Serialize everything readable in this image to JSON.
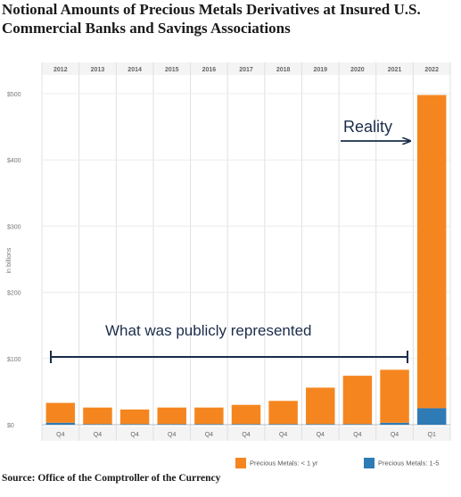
{
  "title": "Notional Amounts of Precious Metals Derivatives at Insured U.S. Commercial Banks and Savings Associations",
  "source": "Source: Office of the Comptroller of the Currency",
  "colors": {
    "orange": "#f5861f",
    "blue": "#2f7bb5",
    "grid": "#e6e6e6",
    "annotation": "#1b2d4a"
  },
  "chart_data": {
    "type": "bar",
    "stacked": true,
    "categories": [
      "2012",
      "2013",
      "2014",
      "2015",
      "2016",
      "2017",
      "2018",
      "2019",
      "2020",
      "2021",
      "2022"
    ],
    "quarters": [
      "Q4",
      "Q4",
      "Q4",
      "Q4",
      "Q4",
      "Q4",
      "Q4",
      "Q4",
      "Q4",
      "Q4",
      "Q1"
    ],
    "series": [
      {
        "name": "Precious Metals: < 1 yr",
        "color": "#f5861f",
        "values": [
          30,
          25,
          22,
          25,
          25,
          29,
          35,
          55,
          73,
          80,
          473
        ]
      },
      {
        "name": "Precious Metals: 1-5",
        "color": "#2f7bb5",
        "values": [
          3,
          1,
          1,
          1,
          1,
          1,
          1,
          1,
          1,
          3,
          25
        ]
      }
    ],
    "y_ticks": [
      "$0",
      "$100",
      "$200",
      "$300",
      "$400",
      "$500"
    ],
    "ylabel": "in billions",
    "ylim": [
      0,
      500
    ],
    "grid": true,
    "legend_position": "bottom",
    "annotations": {
      "reality": "Reality",
      "represented": "What was publicly represented"
    }
  }
}
